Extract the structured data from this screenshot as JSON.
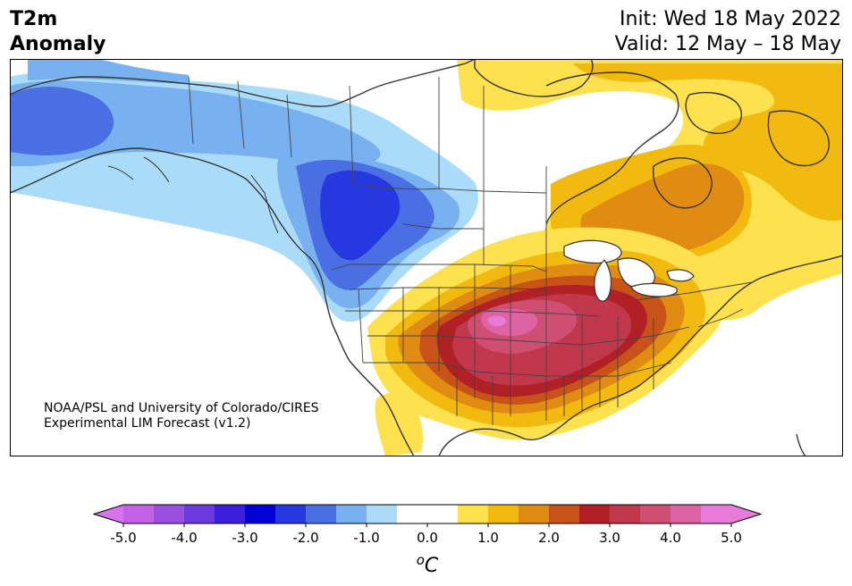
{
  "title": {
    "line1": "T2m",
    "line2": "Anomaly"
  },
  "dates": {
    "init": "Init: Wed 18 May 2022",
    "valid": "Valid: 12 May – 18 May"
  },
  "credit": {
    "line1": "NOAA/PSL and University of Colorado/CIRES",
    "line2": "Experimental LIM Forecast (v1.2)"
  },
  "colorbar": {
    "unit_label": "°C",
    "ticks": [
      "-5.0",
      "-4.0",
      "-3.0",
      "-2.0",
      "-1.0",
      "0.0",
      "1.0",
      "2.0",
      "3.0",
      "4.0",
      "5.0"
    ],
    "range": [
      -5.0,
      5.0
    ],
    "levels": [
      {
        "from": -5.0,
        "to": -4.5,
        "color": "#c462e6"
      },
      {
        "from": -4.5,
        "to": -4.0,
        "color": "#9b4fe0"
      },
      {
        "from": -4.0,
        "to": -3.5,
        "color": "#6a3bde"
      },
      {
        "from": -3.5,
        "to": -3.0,
        "color": "#3a1fd8"
      },
      {
        "from": -3.0,
        "to": -2.5,
        "color": "#0000d4"
      },
      {
        "from": -2.5,
        "to": -2.0,
        "color": "#2638e0"
      },
      {
        "from": -2.0,
        "to": -1.5,
        "color": "#4a6fe3"
      },
      {
        "from": -1.5,
        "to": -1.0,
        "color": "#78b0f0"
      },
      {
        "from": -1.0,
        "to": -0.5,
        "color": "#aadcf9"
      },
      {
        "from": -0.5,
        "to": 0.5,
        "color": "#ffffff"
      },
      {
        "from": 0.5,
        "to": 1.0,
        "color": "#fde14e"
      },
      {
        "from": 1.0,
        "to": 1.5,
        "color": "#f2b90f"
      },
      {
        "from": 1.5,
        "to": 2.0,
        "color": "#e08c12"
      },
      {
        "from": 2.0,
        "to": 2.5,
        "color": "#c75318"
      },
      {
        "from": 2.5,
        "to": 3.0,
        "color": "#b02025"
      },
      {
        "from": 3.0,
        "to": 3.5,
        "color": "#c1384d"
      },
      {
        "from": 3.5,
        "to": 4.0,
        "color": "#cf4f72"
      },
      {
        "from": 4.0,
        "to": 4.5,
        "color": "#de63a5"
      },
      {
        "from": 4.5,
        "to": 5.0,
        "color": "#e87ad8"
      }
    ],
    "under_color": "#d972ee",
    "over_color": "#e87ad8"
  },
  "colors": {
    "land_outline": "#333333"
  }
}
